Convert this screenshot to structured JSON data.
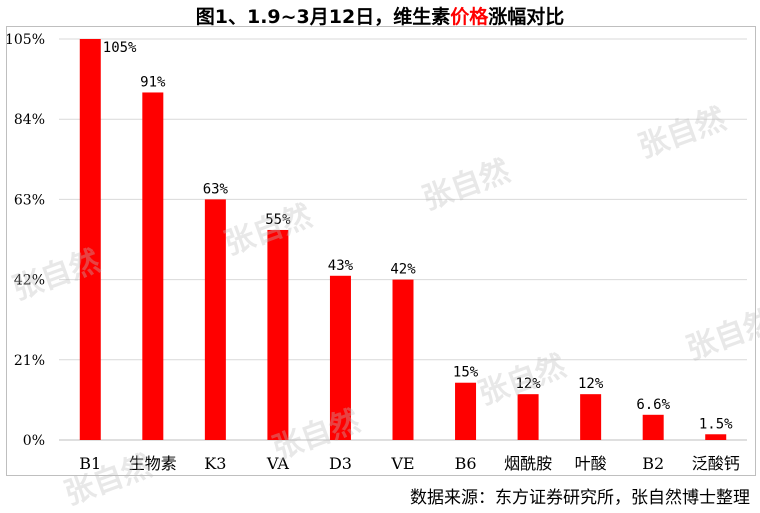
{
  "title": {
    "part1": "图1、1.9~3月12日，维生素",
    "highlight": "价格",
    "part2": "涨幅对比"
  },
  "source": "数据来源：东方证券研究所，张自然博士整理",
  "watermark_text": "张自然",
  "colors": {
    "bar": "#ff0000",
    "highlight": "#ff0000",
    "grid": "#d9d9d9",
    "axis": "#bfbfbf"
  },
  "chart_data": {
    "type": "bar",
    "categories": [
      "B1",
      "生物素",
      "K3",
      "VA",
      "D3",
      "VE",
      "B6",
      "烟酰胺",
      "叶酸",
      "B2",
      "泛酸钙"
    ],
    "values": [
      105,
      91,
      63,
      55,
      43,
      42,
      15,
      12,
      12,
      6.6,
      1.5
    ],
    "data_labels": [
      "105%",
      "91%",
      "63%",
      "55%",
      "43%",
      "42%",
      "15%",
      "12%",
      "12%",
      "6.6%",
      "1.5%"
    ],
    "y_ticks": [
      0,
      21,
      42,
      63,
      84,
      105
    ],
    "y_tick_labels": [
      "0%",
      "21%",
      "42%",
      "63%",
      "84%",
      "105%"
    ],
    "ylim": [
      0,
      105
    ],
    "grid": true,
    "legend": "none",
    "xlabel": "",
    "ylabel": ""
  }
}
